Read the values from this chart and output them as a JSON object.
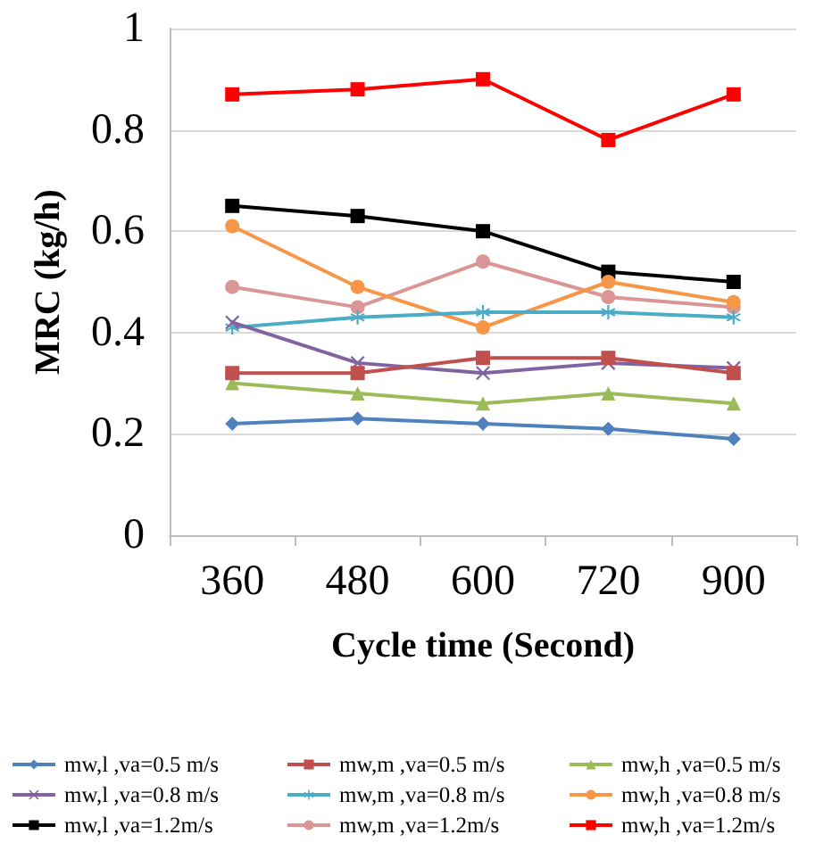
{
  "chart_data": {
    "type": "line",
    "xlabel": "Cycle time (Second)",
    "ylabel": "MRC (kg/h)",
    "categories": [
      "360",
      "480",
      "600",
      "720",
      "900"
    ],
    "ylim": [
      0,
      1
    ],
    "yticks": [
      0,
      0.2,
      0.4,
      0.6,
      0.8,
      1
    ],
    "grid": "y",
    "legend": "bottom",
    "series": [
      {
        "name": "mw,l ,va=0.5 m/s",
        "color": "#4f81bd",
        "marker": "diamond",
        "values": [
          0.22,
          0.23,
          0.22,
          0.21,
          0.19
        ]
      },
      {
        "name": "mw,m ,va=0.5 m/s",
        "color": "#c0504d",
        "marker": "square",
        "values": [
          0.32,
          0.32,
          0.35,
          0.35,
          0.32
        ]
      },
      {
        "name": "mw,h ,va=0.5 m/s",
        "color": "#9bbb59",
        "marker": "triangle",
        "values": [
          0.3,
          0.28,
          0.26,
          0.28,
          0.26
        ]
      },
      {
        "name": "mw,l ,va=0.8 m/s",
        "color": "#8064a2",
        "marker": "cross",
        "values": [
          0.42,
          0.34,
          0.32,
          0.34,
          0.33
        ]
      },
      {
        "name": "mw,m ,va=0.8 m/s",
        "color": "#4bacc6",
        "marker": "star",
        "values": [
          0.41,
          0.43,
          0.44,
          0.44,
          0.43
        ]
      },
      {
        "name": "mw,h ,va=0.8 m/s",
        "color": "#f79646",
        "marker": "circle",
        "values": [
          0.61,
          0.49,
          0.41,
          0.5,
          0.46
        ]
      },
      {
        "name": "mw,l ,va=1.2m/s",
        "color": "#000000",
        "marker": "square",
        "values": [
          0.65,
          0.63,
          0.6,
          0.52,
          0.5
        ]
      },
      {
        "name": "mw,m ,va=1.2m/s",
        "color": "#d99694",
        "marker": "circle",
        "values": [
          0.49,
          0.45,
          0.54,
          0.47,
          0.45
        ]
      },
      {
        "name": "mw,h ,va=1.2m/s",
        "color": "#ff0000",
        "marker": "square",
        "values": [
          0.87,
          0.88,
          0.9,
          0.78,
          0.87
        ]
      }
    ]
  }
}
